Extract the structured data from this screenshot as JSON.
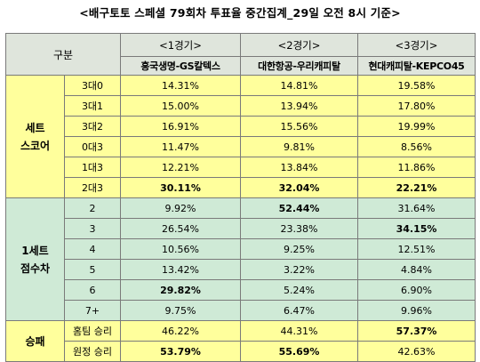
{
  "title": "<배구토토 스페셜 79회차 투표율 중간집계_29일 오전 8시 기준>",
  "table": {
    "header_label": "구분",
    "games": [
      {
        "number": "<1경기>",
        "teams": "흥국생명-GS칼텍스"
      },
      {
        "number": "<2경기>",
        "teams": "대한항공-우리캐피탈"
      },
      {
        "number": "<3경기>",
        "teams": "현대캐피탈-KEPCO45"
      }
    ],
    "sections": [
      {
        "name_lines": [
          "세트",
          "스코어"
        ],
        "rows": [
          {
            "label": "3대0",
            "values": [
              "14.31%",
              "14.81%",
              "19.58%"
            ],
            "bold": [
              false,
              false,
              false
            ]
          },
          {
            "label": "3대1",
            "values": [
              "15.00%",
              "13.94%",
              "17.80%"
            ],
            "bold": [
              false,
              false,
              false
            ]
          },
          {
            "label": "3대2",
            "values": [
              "16.91%",
              "15.56%",
              "19.99%"
            ],
            "bold": [
              false,
              false,
              false
            ]
          },
          {
            "label": "0대3",
            "values": [
              "11.47%",
              "9.81%",
              "8.56%"
            ],
            "bold": [
              false,
              false,
              false
            ]
          },
          {
            "label": "1대3",
            "values": [
              "12.21%",
              "13.84%",
              "11.86%"
            ],
            "bold": [
              false,
              false,
              false
            ]
          },
          {
            "label": "2대3",
            "values": [
              "30.11%",
              "32.04%",
              "22.21%"
            ],
            "bold": [
              true,
              true,
              true
            ]
          }
        ]
      },
      {
        "name_lines": [
          "1세트",
          "점수차"
        ],
        "rows": [
          {
            "label": "2",
            "values": [
              "9.92%",
              "52.44%",
              "31.64%"
            ],
            "bold": [
              false,
              true,
              false
            ]
          },
          {
            "label": "3",
            "values": [
              "26.54%",
              "23.38%",
              "34.15%"
            ],
            "bold": [
              false,
              false,
              true
            ]
          },
          {
            "label": "4",
            "values": [
              "10.56%",
              "9.25%",
              "12.51%"
            ],
            "bold": [
              false,
              false,
              false
            ]
          },
          {
            "label": "5",
            "values": [
              "13.42%",
              "3.22%",
              "4.84%"
            ],
            "bold": [
              false,
              false,
              false
            ]
          },
          {
            "label": "6",
            "values": [
              "29.82%",
              "5.24%",
              "6.90%"
            ],
            "bold": [
              true,
              false,
              false
            ]
          },
          {
            "label": "7+",
            "values": [
              "9.75%",
              "6.47%",
              "9.96%"
            ],
            "bold": [
              false,
              false,
              false
            ]
          }
        ]
      },
      {
        "name_lines": [
          "승패"
        ],
        "rows": [
          {
            "label": "홈팀 승리",
            "values": [
              "46.22%",
              "44.31%",
              "57.37%"
            ],
            "bold": [
              false,
              false,
              true
            ]
          },
          {
            "label": "원정 승리",
            "values": [
              "53.79%",
              "55.69%",
              "42.63%"
            ],
            "bold": [
              true,
              true,
              false
            ]
          }
        ]
      }
    ],
    "colors": {
      "header_bg": "#dfe5dc",
      "section_yellow": "#ffff9c",
      "section_green": "#cfead6",
      "border": "#7a7a7a"
    }
  }
}
